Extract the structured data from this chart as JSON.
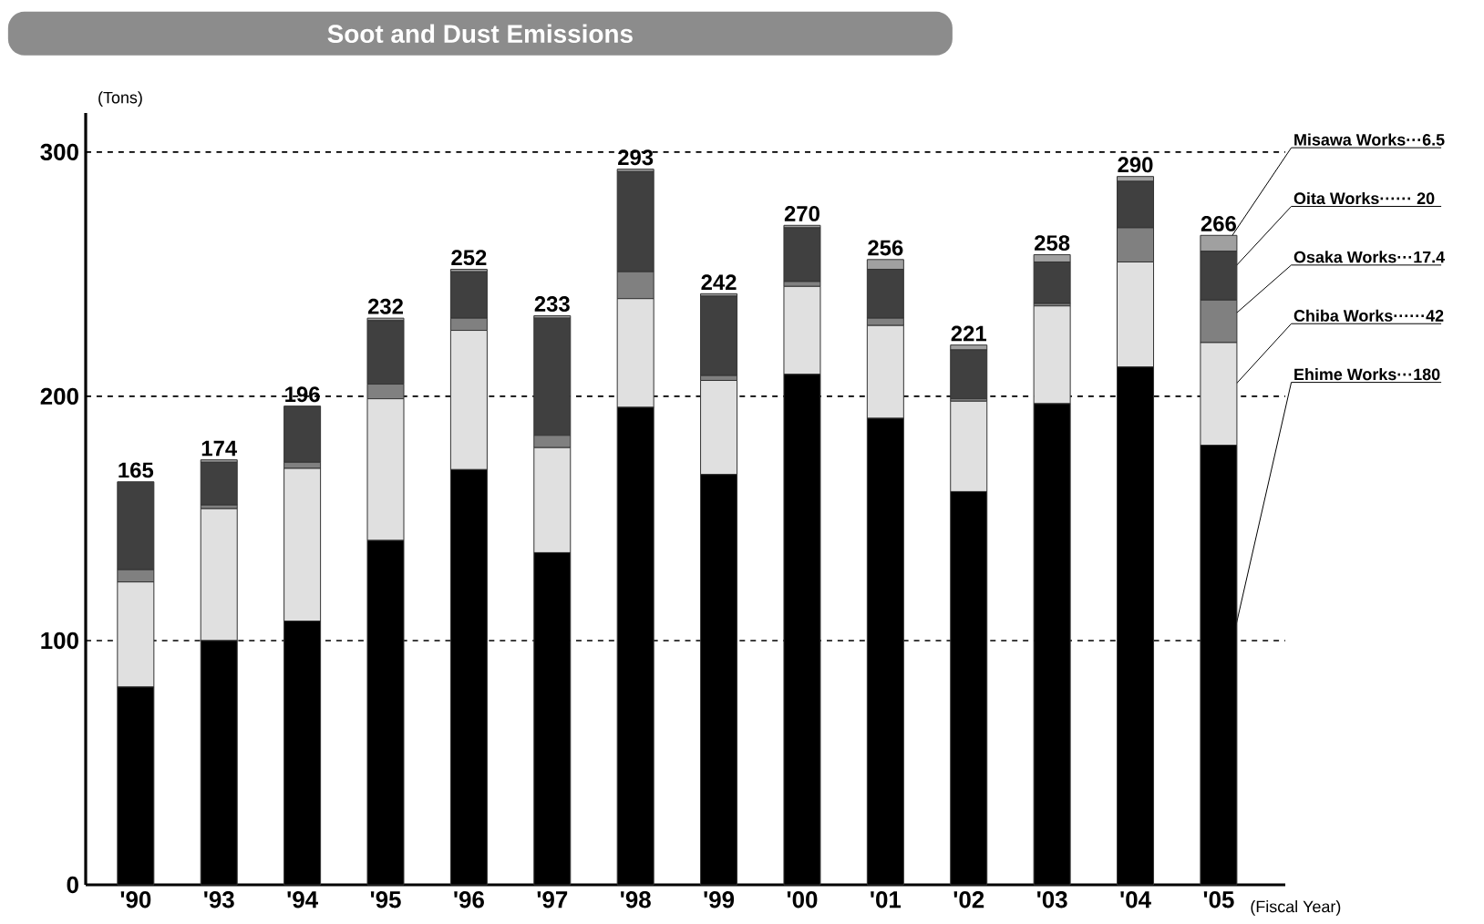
{
  "chart_data": {
    "type": "bar",
    "stacked": true,
    "title": "Soot and Dust Emissions",
    "ylabel": "(Tons)",
    "xlabel": "(Fiscal Year)",
    "categories": [
      "'90",
      "'93",
      "'94",
      "'95",
      "'96",
      "'97",
      "'98",
      "'99",
      "'00",
      "'01",
      "'02",
      "'03",
      "'04",
      "'05"
    ],
    "series": [
      {
        "name": "Ehime Works···180",
        "color": "#000000",
        "values": [
          81,
          100,
          108,
          141,
          170,
          136,
          195.5,
          168,
          209,
          191,
          161,
          197,
          212,
          180
        ]
      },
      {
        "name": "Chiba Works······42",
        "color": "#e0e0e0",
        "values": [
          43,
          54,
          62.5,
          58,
          57,
          43,
          44.5,
          38.5,
          36,
          38,
          37,
          40,
          43,
          42
        ]
      },
      {
        "name": "Osaka Works···17.4",
        "color": "#808080",
        "values": [
          5,
          1.5,
          2.5,
          6,
          5,
          5,
          11,
          2,
          2,
          3,
          1,
          1,
          14,
          17.4
        ]
      },
      {
        "name": "Oita Works······ 20",
        "color": "#404040",
        "values": [
          36,
          17.5,
          23,
          26,
          19,
          48,
          41,
          32.5,
          22,
          20,
          20,
          17,
          19,
          20
        ]
      },
      {
        "name": "Misawa Works···6.5",
        "color": "#a0a0a0",
        "values": [
          0,
          1,
          0,
          1,
          1,
          1,
          1,
          1,
          1,
          4,
          2,
          3,
          2,
          6.5
        ]
      }
    ],
    "totals": [
      "165",
      "174",
      "196",
      "232",
      "252",
      "233",
      "293",
      "242",
      "270",
      "256",
      "221",
      "258",
      "290",
      "266"
    ],
    "ylim": [
      0,
      316
    ],
    "yticks": [
      0,
      100,
      200,
      300
    ],
    "grid": "y"
  }
}
